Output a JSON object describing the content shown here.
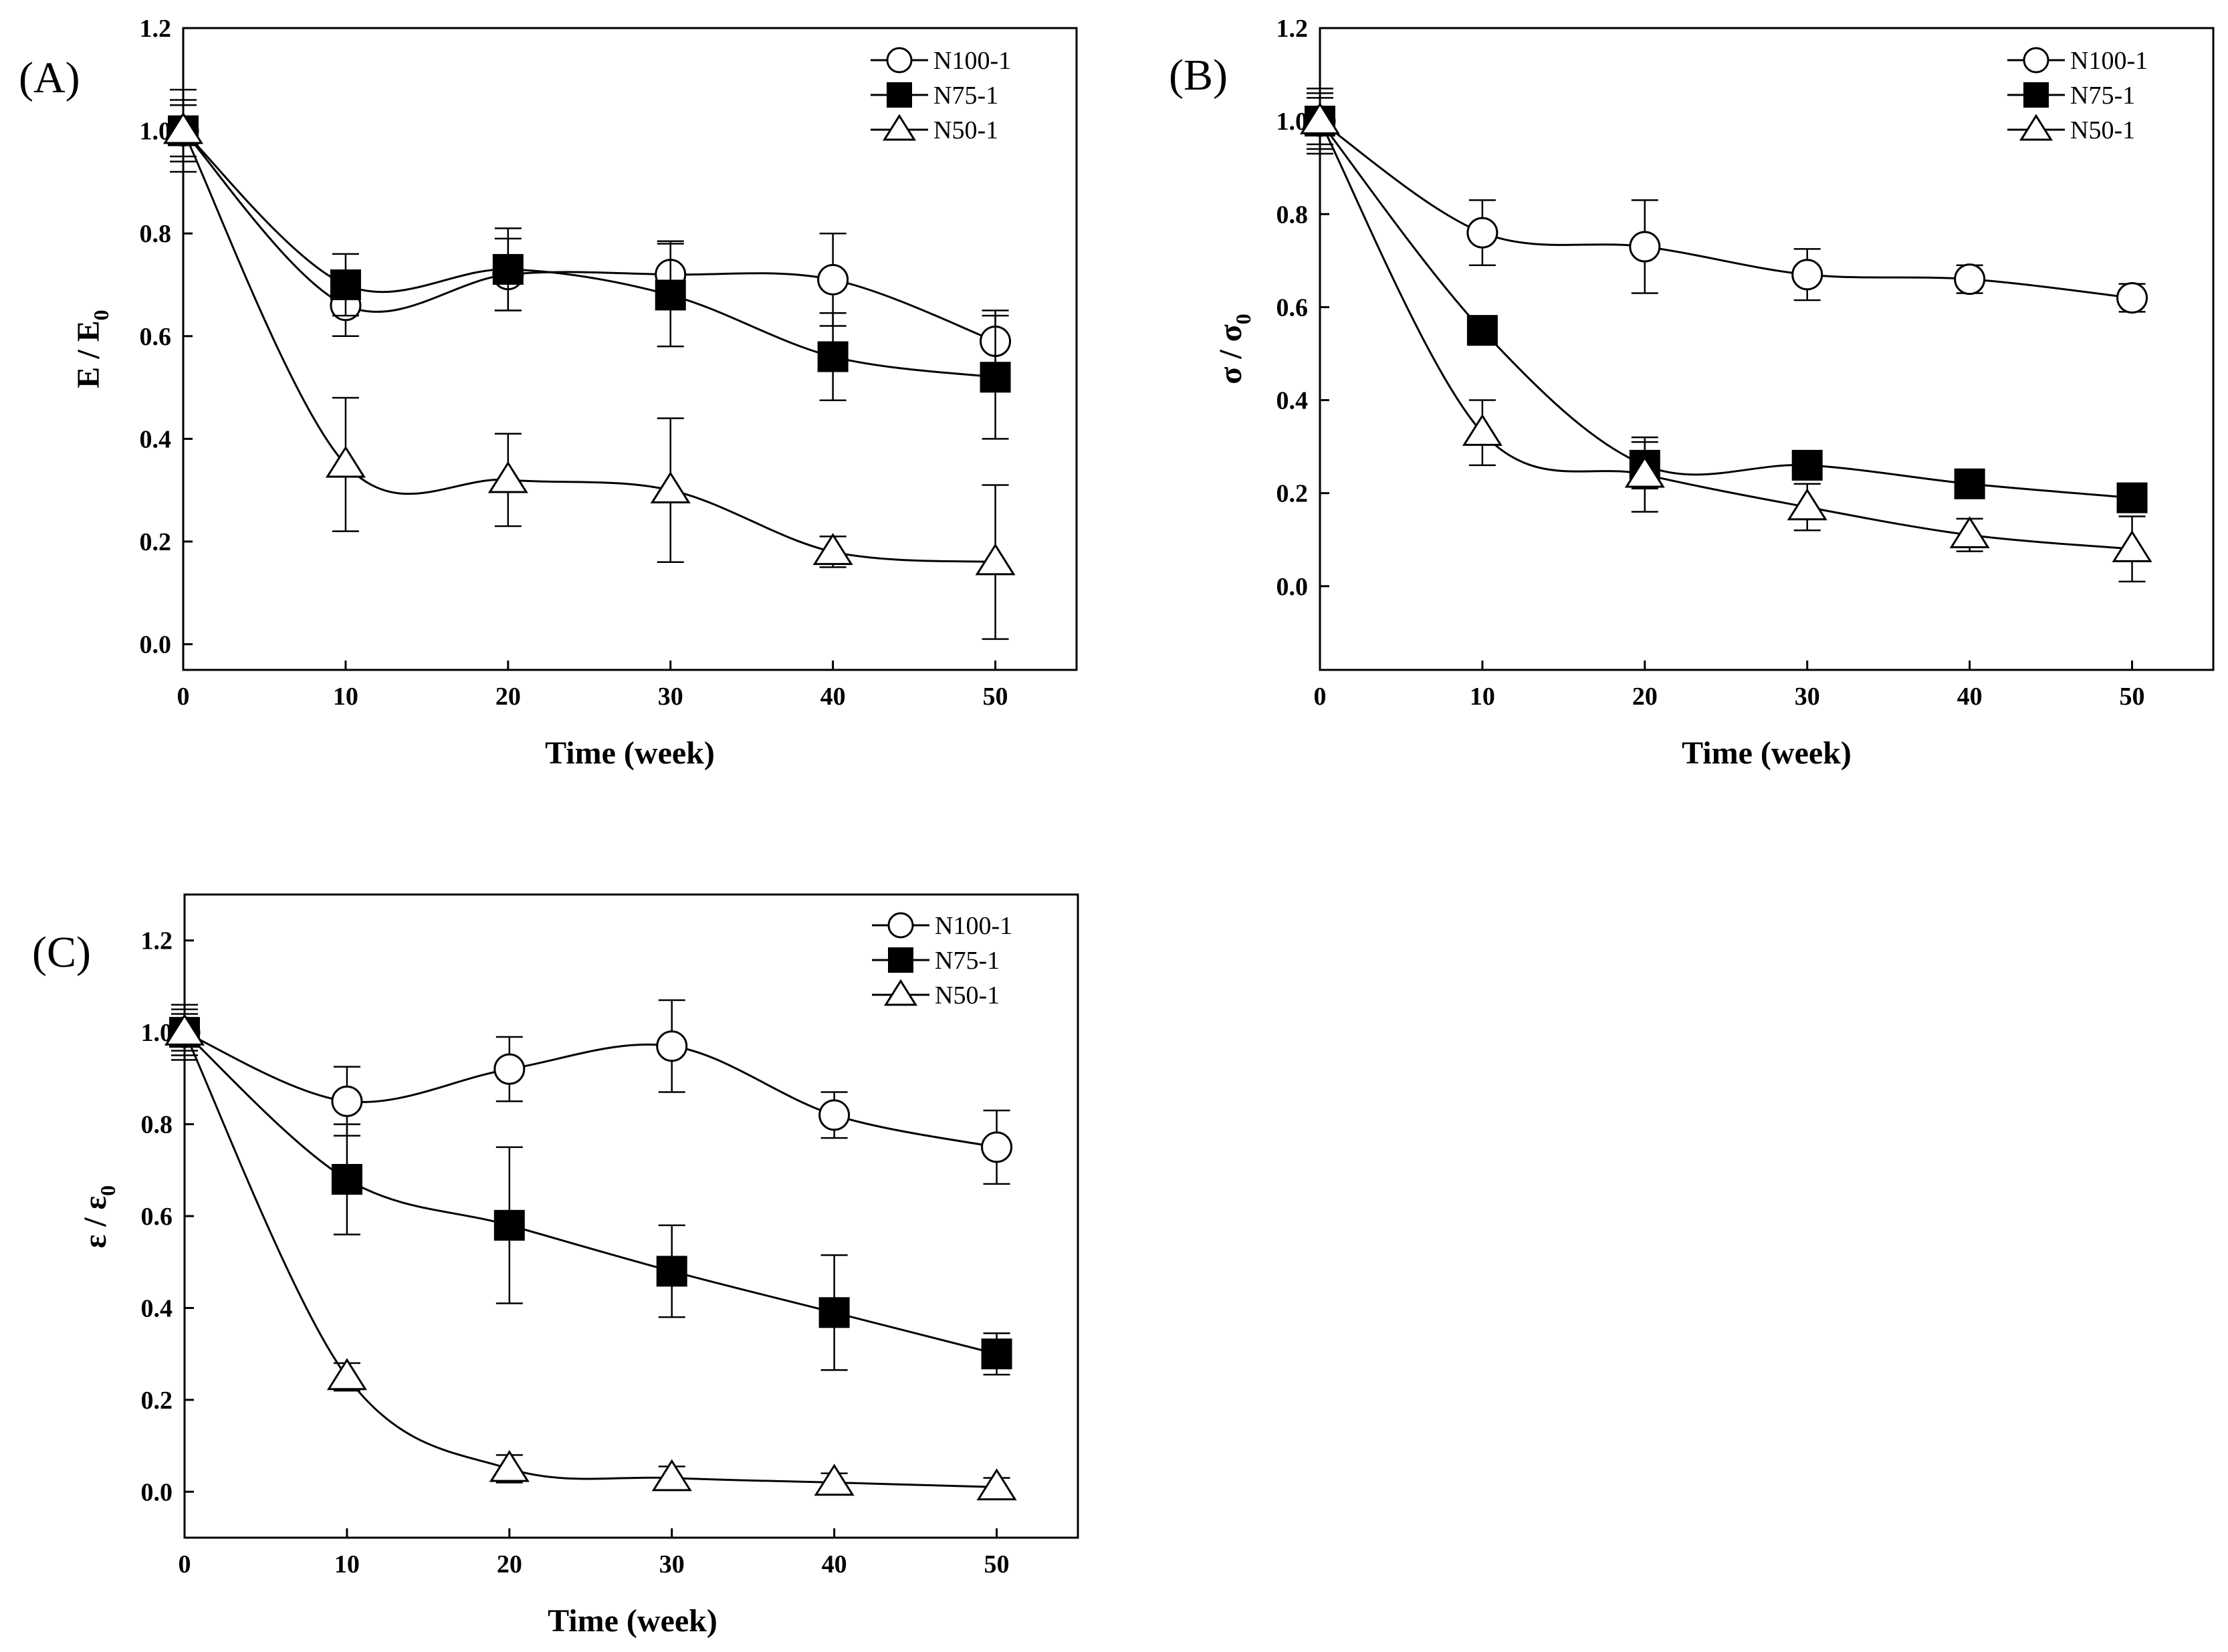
{
  "figure": {
    "panels": [
      {
        "id": "A",
        "tag": "(A)",
        "ylabel_main": "E / E",
        "ylabel_sub": "0"
      },
      {
        "id": "B",
        "tag": "(B)",
        "ylabel_main": "σ / σ",
        "ylabel_sub": "0"
      },
      {
        "id": "C",
        "tag": "(C)",
        "ylabel_main": "ε / ε",
        "ylabel_sub": "0"
      }
    ]
  },
  "chart_data": [
    {
      "type": "scatter",
      "panel": "(A)",
      "title": "",
      "xlabel": "Time (week)",
      "ylabel": "E / E0",
      "xlim": [
        0,
        55
      ],
      "ylim": [
        -0.05,
        1.2
      ],
      "xticks": [
        0,
        10,
        20,
        30,
        40,
        50
      ],
      "yticks": [
        0.0,
        0.2,
        0.4,
        0.6,
        0.8,
        1.0,
        1.2
      ],
      "x": [
        0,
        10,
        20,
        30,
        40,
        50
      ],
      "legend_position": "top-right",
      "series": [
        {
          "name": "N100-1",
          "marker": "circle-open",
          "values": [
            1.0,
            0.66,
            0.72,
            0.72,
            0.71,
            0.59
          ],
          "errors": [
            0.05,
            0.06,
            0.07,
            0.065,
            0.09,
            0.06
          ]
        },
        {
          "name": "N75-1",
          "marker": "square-filled",
          "values": [
            1.0,
            0.7,
            0.73,
            0.68,
            0.56,
            0.52
          ],
          "errors": [
            0.08,
            0.06,
            0.08,
            0.1,
            0.085,
            0.12
          ]
        },
        {
          "name": "N50-1",
          "marker": "triangle-open",
          "values": [
            1.0,
            0.35,
            0.32,
            0.3,
            0.18,
            0.16
          ],
          "errors": [
            0.06,
            0.13,
            0.09,
            0.14,
            0.03,
            0.15
          ]
        }
      ]
    },
    {
      "type": "scatter",
      "panel": "(B)",
      "title": "",
      "xlabel": "Time (week)",
      "ylabel": "σ / σ0",
      "xlim": [
        0,
        55
      ],
      "ylim": [
        -0.18,
        1.2
      ],
      "xticks": [
        0,
        10,
        20,
        30,
        40,
        50
      ],
      "yticks": [
        0.0,
        0.2,
        0.4,
        0.6,
        0.8,
        1.0,
        1.2
      ],
      "x": [
        0,
        10,
        20,
        30,
        40,
        50
      ],
      "legend_position": "top-right",
      "series": [
        {
          "name": "N100-1",
          "marker": "circle-open",
          "values": [
            1.0,
            0.76,
            0.73,
            0.67,
            0.66,
            0.62
          ],
          "errors": [
            0.07,
            0.07,
            0.1,
            0.055,
            0.03,
            0.03
          ]
        },
        {
          "name": "N75-1",
          "marker": "square-filled",
          "values": [
            1.0,
            0.55,
            0.26,
            0.26,
            0.22,
            0.19
          ],
          "errors": [
            0.06,
            0.03,
            0.05,
            0.02,
            0.02,
            0.03
          ]
        },
        {
          "name": "N50-1",
          "marker": "triangle-open",
          "values": [
            1.0,
            0.33,
            0.24,
            0.17,
            0.11,
            0.08
          ],
          "errors": [
            0.05,
            0.07,
            0.08,
            0.05,
            0.035,
            0.07
          ]
        }
      ]
    },
    {
      "type": "scatter",
      "panel": "(C)",
      "title": "",
      "xlabel": "Time (week)",
      "ylabel": "ε / ε0",
      "xlim": [
        0,
        55
      ],
      "ylim": [
        -0.1,
        1.3
      ],
      "xticks": [
        0,
        10,
        20,
        30,
        40,
        50
      ],
      "yticks": [
        0.0,
        0.2,
        0.4,
        0.6,
        0.8,
        1.0,
        1.2
      ],
      "x": [
        0,
        10,
        20,
        30,
        40,
        50
      ],
      "legend_position": "top-right",
      "series": [
        {
          "name": "N100-1",
          "marker": "circle-open",
          "values": [
            1.0,
            0.85,
            0.92,
            0.97,
            0.82,
            0.75
          ],
          "errors": [
            0.05,
            0.075,
            0.07,
            0.1,
            0.05,
            0.08
          ]
        },
        {
          "name": "N75-1",
          "marker": "square-filled",
          "values": [
            1.0,
            0.68,
            0.58,
            0.48,
            0.39,
            0.3
          ],
          "errors": [
            0.06,
            0.12,
            0.17,
            0.1,
            0.125,
            0.045
          ]
        },
        {
          "name": "N50-1",
          "marker": "triangle-open",
          "values": [
            1.0,
            0.25,
            0.05,
            0.03,
            0.02,
            0.01
          ],
          "errors": [
            0.04,
            0.03,
            0.03,
            0.025,
            0.02,
            0.02
          ]
        }
      ]
    }
  ]
}
